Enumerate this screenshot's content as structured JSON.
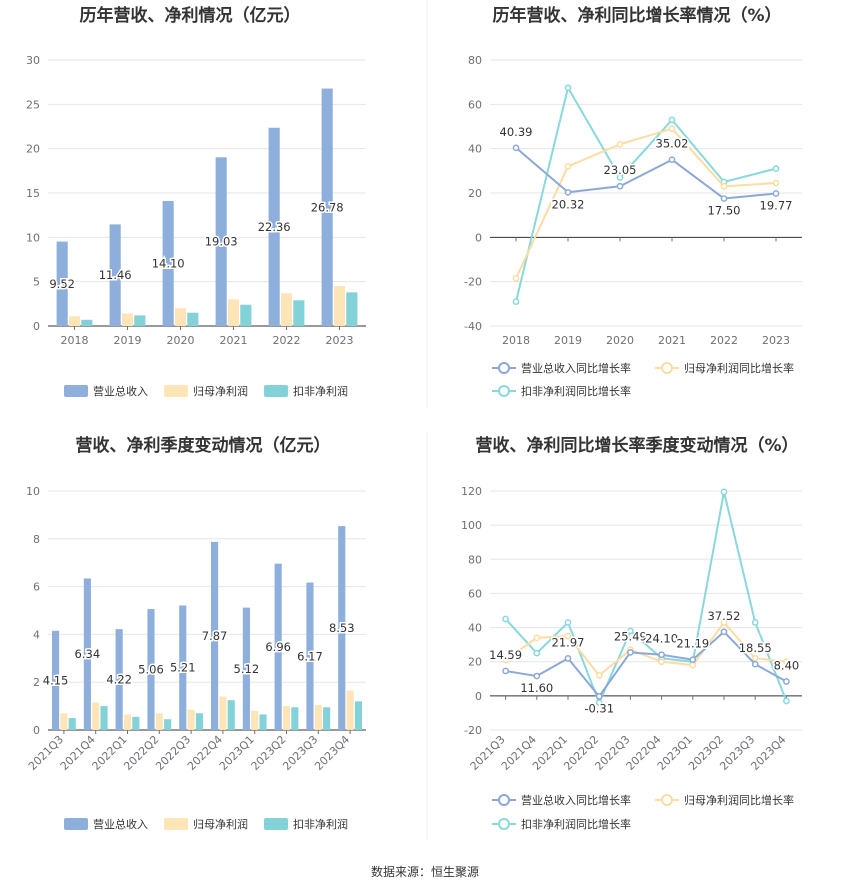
{
  "source": "数据来源：恒生聚源",
  "colors": {
    "revenue_bar": "#8eaedc",
    "net_profit_bar": "#fde5b7",
    "deducted_profit_bar": "#83d2d8",
    "revenue_line": "#8ca8d6",
    "net_profit_line": "#fcdca3",
    "deducted_profit_line": "#88d8dc"
  },
  "chart_data": [
    {
      "type": "bar",
      "title": "历年营收、净利情况（亿元）",
      "categories": [
        "2018",
        "2019",
        "2020",
        "2021",
        "2022",
        "2023"
      ],
      "ylim": [
        0,
        30
      ],
      "yticks": [
        0,
        5,
        10,
        15,
        20,
        25,
        30
      ],
      "series": [
        {
          "name": "营业总收入",
          "values": [
            9.52,
            11.46,
            14.1,
            19.03,
            22.36,
            26.78
          ],
          "labels": [
            "9.52",
            "11.46",
            "14.10",
            "19.03",
            "22.36",
            "26.78"
          ]
        },
        {
          "name": "归母净利润",
          "values": [
            1.1,
            1.4,
            2.0,
            3.0,
            3.7,
            4.5
          ]
        },
        {
          "name": "扣非净利润",
          "values": [
            0.7,
            1.2,
            1.5,
            2.4,
            2.9,
            3.8
          ]
        }
      ],
      "legend": "bottom"
    },
    {
      "type": "line",
      "title": "历年营收、净利同比增长率情况（%）",
      "categories": [
        "2018",
        "2019",
        "2020",
        "2021",
        "2022",
        "2023"
      ],
      "ylim": [
        -40,
        80
      ],
      "yticks": [
        -40,
        -20,
        0,
        20,
        40,
        60,
        80
      ],
      "series": [
        {
          "name": "营业总收入同比增长率",
          "values": [
            40.39,
            20.32,
            23.05,
            35.02,
            17.5,
            19.77
          ],
          "labels": [
            "40.39",
            "20.32",
            "23.05",
            "35.02",
            "17.50",
            "19.77"
          ]
        },
        {
          "name": "归母净利润同比增长率",
          "values": [
            -18.5,
            32.0,
            42.0,
            49.0,
            23.0,
            24.5
          ]
        },
        {
          "name": "扣非净利润同比增长率",
          "values": [
            -29.0,
            67.5,
            27.0,
            53.0,
            25.0,
            31.0
          ]
        }
      ],
      "legend": "bottom"
    },
    {
      "type": "bar",
      "title": "营收、净利季度变动情况（亿元）",
      "categories": [
        "2021Q3",
        "2021Q4",
        "2022Q1",
        "2022Q2",
        "2022Q3",
        "2022Q4",
        "2023Q1",
        "2023Q2",
        "2023Q3",
        "2023Q4"
      ],
      "ylim": [
        0,
        10
      ],
      "yticks": [
        0,
        2,
        4,
        6,
        8,
        10
      ],
      "series": [
        {
          "name": "营业总收入",
          "values": [
            4.15,
            6.34,
            4.22,
            5.06,
            5.21,
            7.87,
            5.12,
            6.96,
            6.17,
            8.53
          ],
          "labels": [
            "4.15",
            "6.34",
            "4.22",
            "5.06",
            "5.21",
            "7.87",
            "5.12",
            "6.96",
            "6.17",
            "8.53"
          ]
        },
        {
          "name": "归母净利润",
          "values": [
            0.7,
            1.15,
            0.65,
            0.7,
            0.85,
            1.4,
            0.8,
            1.0,
            1.05,
            1.65
          ]
        },
        {
          "name": "扣非净利润",
          "values": [
            0.5,
            1.0,
            0.55,
            0.45,
            0.7,
            1.25,
            0.65,
            0.95,
            0.95,
            1.2
          ]
        }
      ],
      "legend": "bottom"
    },
    {
      "type": "line",
      "title": "营收、净利同比增长率季度变动情况（%）",
      "categories": [
        "2021Q3",
        "2021Q4",
        "2022Q1",
        "2022Q2",
        "2022Q3",
        "2022Q4",
        "2023Q1",
        "2023Q2",
        "2023Q3",
        "2023Q4"
      ],
      "ylim": [
        -20,
        120
      ],
      "yticks": [
        -20,
        0,
        20,
        40,
        60,
        80,
        100,
        120
      ],
      "series": [
        {
          "name": "营业总收入同比增长率",
          "values": [
            14.59,
            11.6,
            21.97,
            -0.31,
            25.49,
            24.1,
            21.19,
            37.52,
            18.55,
            8.4
          ],
          "labels": [
            "14.59",
            "11.60",
            "21.97",
            "-0.31",
            "25.49",
            "24.10",
            "21.19",
            "37.52",
            "18.55",
            "8.40"
          ]
        },
        {
          "name": "归母净利润同比增长率",
          "values": [
            21.0,
            34.0,
            35.0,
            12.0,
            27.0,
            20.0,
            18.0,
            43.0,
            22.0,
            20.0
          ]
        },
        {
          "name": "扣非净利润同比增长率",
          "values": [
            45.0,
            25.0,
            43.0,
            -4.0,
            38.0,
            22.0,
            20.0,
            119.5,
            43.0,
            -3.0
          ]
        }
      ],
      "legend": "bottom"
    }
  ]
}
